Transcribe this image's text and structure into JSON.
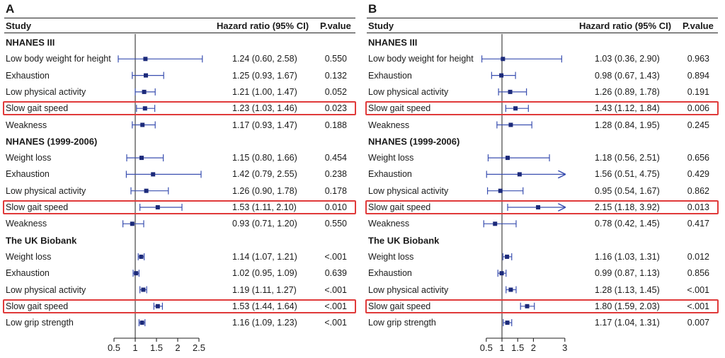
{
  "colors": {
    "marker": "#1c2a7a",
    "ci_line": "#3a4fb0",
    "highlight": "#e03a3a",
    "axis": "#222222"
  },
  "headers": {
    "study": "Study",
    "hr": "Hazard ratio (95% CI)",
    "p": "P.value"
  },
  "chart_data": [
    {
      "type": "forest",
      "panel": "A",
      "x_ticks": [
        0.5,
        1,
        1.5,
        2,
        2.5
      ],
      "xlim": [
        0.5,
        2.5
      ],
      "reference_line": 1,
      "rows": [
        {
          "kind": "group",
          "label": "NHANES III"
        },
        {
          "label": "Low body weight for height",
          "hr": 1.24,
          "lo": 0.6,
          "hi": 2.58,
          "ci_text": "1.24 (0.60, 2.58)",
          "p": "0.550"
        },
        {
          "label": "Exhaustion",
          "hr": 1.25,
          "lo": 0.93,
          "hi": 1.67,
          "ci_text": "1.25 (0.93, 1.67)",
          "p": "0.132"
        },
        {
          "label": "Low physical activity",
          "hr": 1.21,
          "lo": 1.0,
          "hi": 1.47,
          "ci_text": "1.21 (1.00, 1.47)",
          "p": "0.052"
        },
        {
          "label": "Slow gait speed",
          "hr": 1.23,
          "lo": 1.03,
          "hi": 1.46,
          "ci_text": "1.23 (1.03, 1.46)",
          "p": "0.023",
          "highlight": true
        },
        {
          "label": "Weakness",
          "hr": 1.17,
          "lo": 0.93,
          "hi": 1.47,
          "ci_text": "1.17 (0.93, 1.47)",
          "p": "0.188"
        },
        {
          "kind": "group",
          "label": "NHANES (1999-2006)"
        },
        {
          "label": "Weight loss",
          "hr": 1.15,
          "lo": 0.8,
          "hi": 1.66,
          "ci_text": "1.15 (0.80, 1.66)",
          "p": "0.454"
        },
        {
          "label": "Exhaustion",
          "hr": 1.42,
          "lo": 0.79,
          "hi": 2.55,
          "ci_text": "1.42 (0.79, 2.55)",
          "p": "0.238"
        },
        {
          "label": "Low physical activity",
          "hr": 1.26,
          "lo": 0.9,
          "hi": 1.78,
          "ci_text": "1.26 (0.90, 1.78)",
          "p": "0.178"
        },
        {
          "label": "Slow gait speed",
          "hr": 1.53,
          "lo": 1.11,
          "hi": 2.1,
          "ci_text": "1.53 (1.11, 2.10)",
          "p": "0.010",
          "highlight": true
        },
        {
          "label": "Weakness",
          "hr": 0.93,
          "lo": 0.71,
          "hi": 1.2,
          "ci_text": "0.93 (0.71, 1.20)",
          "p": "0.550"
        },
        {
          "kind": "group",
          "label": "The UK Biobank"
        },
        {
          "label": "Weight loss",
          "hr": 1.14,
          "lo": 1.07,
          "hi": 1.21,
          "ci_text": "1.14 (1.07, 1.21)",
          "p": "<.001"
        },
        {
          "label": "Exhaustion",
          "hr": 1.02,
          "lo": 0.95,
          "hi": 1.09,
          "ci_text": "1.02 (0.95, 1.09)",
          "p": "0.639"
        },
        {
          "label": "Low physical activity",
          "hr": 1.19,
          "lo": 1.11,
          "hi": 1.27,
          "ci_text": "1.19 (1.11, 1.27)",
          "p": "<.001"
        },
        {
          "label": "Slow gait speed",
          "hr": 1.53,
          "lo": 1.44,
          "hi": 1.64,
          "ci_text": "1.53 (1.44, 1.64)",
          "p": "<.001",
          "highlight": true
        },
        {
          "label": "Low grip strength",
          "hr": 1.16,
          "lo": 1.09,
          "hi": 1.23,
          "ci_text": "1.16 (1.09, 1.23)",
          "p": "<.001"
        }
      ]
    },
    {
      "type": "forest",
      "panel": "B",
      "x_ticks": [
        0.5,
        1,
        1.5,
        2,
        3
      ],
      "xlim": [
        0.5,
        3
      ],
      "reference_line": 1,
      "rows": [
        {
          "kind": "group",
          "label": "NHANES III"
        },
        {
          "label": "Low body weight for height",
          "hr": 1.03,
          "lo": 0.36,
          "hi": 2.9,
          "ci_text": "1.03 (0.36, 2.90)",
          "p": "0.963"
        },
        {
          "label": "Exhaustion",
          "hr": 0.98,
          "lo": 0.67,
          "hi": 1.43,
          "ci_text": "0.98 (0.67, 1.43)",
          "p": "0.894"
        },
        {
          "label": "Low physical activity",
          "hr": 1.26,
          "lo": 0.89,
          "hi": 1.78,
          "ci_text": "1.26 (0.89, 1.78)",
          "p": "0.191"
        },
        {
          "label": "Slow gait speed",
          "hr": 1.43,
          "lo": 1.12,
          "hi": 1.84,
          "ci_text": "1.43 (1.12, 1.84)",
          "p": "0.006",
          "highlight": true
        },
        {
          "label": "Weakness",
          "hr": 1.28,
          "lo": 0.84,
          "hi": 1.95,
          "ci_text": "1.28 (0.84, 1.95)",
          "p": "0.245"
        },
        {
          "kind": "group",
          "label": "NHANES (1999-2006)"
        },
        {
          "label": "Weight loss",
          "hr": 1.18,
          "lo": 0.56,
          "hi": 2.51,
          "ci_text": "1.18 (0.56, 2.51)",
          "p": "0.656"
        },
        {
          "label": "Exhaustion",
          "hr": 1.56,
          "lo": 0.51,
          "hi": 4.75,
          "ci_text": "1.56 (0.51, 4.75)",
          "p": "0.429",
          "arrow": true
        },
        {
          "label": "Low physical activity",
          "hr": 0.95,
          "lo": 0.54,
          "hi": 1.67,
          "ci_text": "0.95 (0.54, 1.67)",
          "p": "0.862"
        },
        {
          "label": "Slow gait speed",
          "hr": 2.15,
          "lo": 1.18,
          "hi": 3.92,
          "ci_text": "2.15 (1.18, 3.92)",
          "p": "0.013",
          "highlight": true,
          "arrow": true
        },
        {
          "label": "Weakness",
          "hr": 0.78,
          "lo": 0.42,
          "hi": 1.45,
          "ci_text": "0.78 (0.42, 1.45)",
          "p": "0.417"
        },
        {
          "kind": "group",
          "label": "The UK Biobank"
        },
        {
          "label": "Weight loss",
          "hr": 1.16,
          "lo": 1.03,
          "hi": 1.31,
          "ci_text": "1.16 (1.03, 1.31)",
          "p": "0.012"
        },
        {
          "label": "Exhaustion",
          "hr": 0.99,
          "lo": 0.87,
          "hi": 1.13,
          "ci_text": "0.99 (0.87, 1.13)",
          "p": "0.856"
        },
        {
          "label": "Low physical activity",
          "hr": 1.28,
          "lo": 1.13,
          "hi": 1.45,
          "ci_text": "1.28 (1.13, 1.45)",
          "p": "<.001"
        },
        {
          "label": "Slow gait speed",
          "hr": 1.8,
          "lo": 1.59,
          "hi": 2.03,
          "ci_text": "1.80 (1.59, 2.03)",
          "p": "<.001",
          "highlight": true
        },
        {
          "label": "Low grip strength",
          "hr": 1.17,
          "lo": 1.04,
          "hi": 1.31,
          "ci_text": "1.17 (1.04, 1.31)",
          "p": "0.007"
        }
      ]
    }
  ]
}
